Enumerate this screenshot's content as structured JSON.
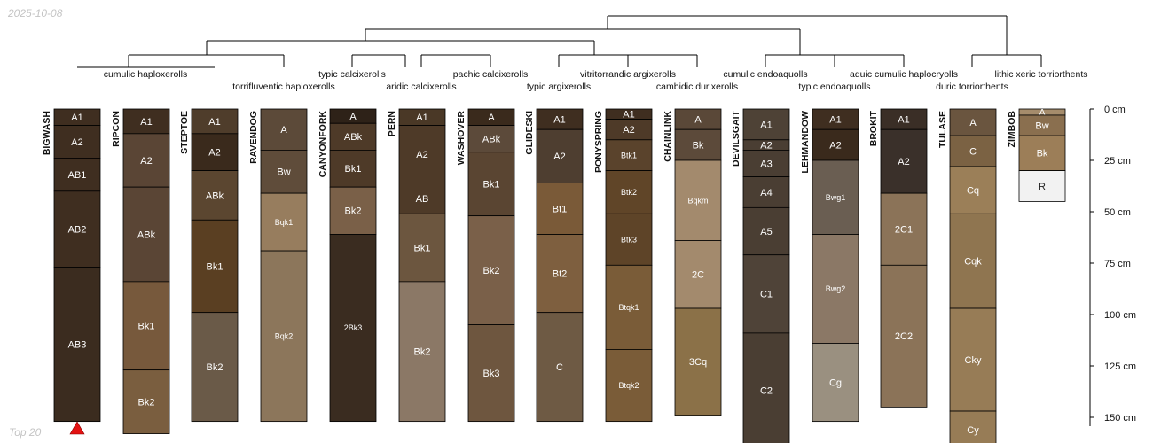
{
  "header": {
    "date": "2025-10-08"
  },
  "footer": {
    "note": "Top 20"
  },
  "depth_axis": {
    "unit": "cm",
    "ticks": [
      0,
      25,
      50,
      75,
      100,
      125,
      150
    ]
  },
  "taxa": [
    "cumulic haploxerolls",
    "torrifluventic haploxerolls",
    "typic calcixerolls",
    "aridic calcixerolls",
    "pachic calcixerolls",
    "typic argixerolls",
    "vitritorrandic argixerolls",
    "cambidic durixerolls",
    "cumulic endoaquolls",
    "typic endoaquolls",
    "aquic cumulic haplocryolls",
    "duric torriorthents",
    "lithic xeric torriorthents"
  ],
  "profiles": [
    {
      "name": "BIGWASH",
      "horizons": [
        {
          "name": "A1",
          "top": 0,
          "bottom": 8,
          "color": "#3f2e20"
        },
        {
          "name": "A2",
          "top": 8,
          "bottom": 24,
          "color": "#3f2e20"
        },
        {
          "name": "AB1",
          "top": 24,
          "bottom": 40,
          "color": "#3f2e20"
        },
        {
          "name": "AB2",
          "top": 40,
          "bottom": 77,
          "color": "#3f2e20"
        },
        {
          "name": "AB3",
          "top": 77,
          "bottom": 152,
          "color": "#3b2c1f"
        }
      ]
    },
    {
      "name": "RIPCON",
      "horizons": [
        {
          "name": "A1",
          "top": 0,
          "bottom": 12,
          "color": "#3f2e20"
        },
        {
          "name": "A2",
          "top": 12,
          "bottom": 38,
          "color": "#5a4535"
        },
        {
          "name": "ABk",
          "top": 38,
          "bottom": 84,
          "color": "#5a4535"
        },
        {
          "name": "Bk1",
          "top": 84,
          "bottom": 127,
          "color": "#77593c"
        },
        {
          "name": "Bk2",
          "top": 127,
          "bottom": 158,
          "color": "#7a5e3f"
        }
      ]
    },
    {
      "name": "STEPTOE",
      "horizons": [
        {
          "name": "A1",
          "top": 0,
          "bottom": 12,
          "color": "#4f3d2b"
        },
        {
          "name": "A2",
          "top": 12,
          "bottom": 30,
          "color": "#3a2a1c"
        },
        {
          "name": "ABk",
          "top": 30,
          "bottom": 54,
          "color": "#5b4630"
        },
        {
          "name": "Bk1",
          "top": 54,
          "bottom": 99,
          "color": "#5a3f22"
        },
        {
          "name": "Bk2",
          "top": 99,
          "bottom": 152,
          "color": "#6a5a48"
        }
      ]
    },
    {
      "name": "RAVENDOG",
      "horizons": [
        {
          "name": "A",
          "top": 0,
          "bottom": 20,
          "color": "#5c4a39"
        },
        {
          "name": "Bw",
          "top": 20,
          "bottom": 41,
          "color": "#5f4c3a"
        },
        {
          "name": "Bqk1",
          "top": 41,
          "bottom": 69,
          "color": "#977d5e"
        },
        {
          "name": "Bqk2",
          "top": 69,
          "bottom": 152,
          "color": "#8c765b"
        }
      ]
    },
    {
      "name": "CANYONFORK",
      "horizons": [
        {
          "name": "A",
          "top": 0,
          "bottom": 7,
          "color": "#2e2218"
        },
        {
          "name": "ABk",
          "top": 7,
          "bottom": 20,
          "color": "#4e3a28"
        },
        {
          "name": "Bk1",
          "top": 20,
          "bottom": 38,
          "color": "#4e3a28"
        },
        {
          "name": "Bk2",
          "top": 38,
          "bottom": 61,
          "color": "#7a6048"
        },
        {
          "name": "2Bk3",
          "top": 61,
          "bottom": 152,
          "color": "#3a2c20"
        }
      ]
    },
    {
      "name": "PERN",
      "horizons": [
        {
          "name": "A1",
          "top": 0,
          "bottom": 8,
          "color": "#4a3826"
        },
        {
          "name": "A2",
          "top": 8,
          "bottom": 36,
          "color": "#4e3a28"
        },
        {
          "name": "AB",
          "top": 36,
          "bottom": 51,
          "color": "#4e3a28"
        },
        {
          "name": "Bk1",
          "top": 51,
          "bottom": 84,
          "color": "#6c563f"
        },
        {
          "name": "Bk2",
          "top": 84,
          "bottom": 152,
          "color": "#8b7866"
        }
      ]
    },
    {
      "name": "WASHOVER",
      "horizons": [
        {
          "name": "A",
          "top": 0,
          "bottom": 8,
          "color": "#3a2a1c"
        },
        {
          "name": "ABk",
          "top": 8,
          "bottom": 21,
          "color": "#5c4a3a"
        },
        {
          "name": "Bk1",
          "top": 21,
          "bottom": 52,
          "color": "#5a4532"
        },
        {
          "name": "Bk2",
          "top": 52,
          "bottom": 105,
          "color": "#7a6049"
        },
        {
          "name": "Bk3",
          "top": 105,
          "bottom": 152,
          "color": "#6e563f"
        }
      ]
    },
    {
      "name": "GLIDESKI",
      "horizons": [
        {
          "name": "A1",
          "top": 0,
          "bottom": 10,
          "color": "#3f2e20"
        },
        {
          "name": "A2",
          "top": 10,
          "bottom": 36,
          "color": "#4e3e30"
        },
        {
          "name": "Bt1",
          "top": 36,
          "bottom": 61,
          "color": "#7a5a38"
        },
        {
          "name": "Bt2",
          "top": 61,
          "bottom": 99,
          "color": "#7e5f3f"
        },
        {
          "name": "C",
          "top": 99,
          "bottom": 152,
          "color": "#6e5a44"
        }
      ]
    },
    {
      "name": "PONYSPRING",
      "horizons": [
        {
          "name": "A1",
          "top": 0,
          "bottom": 5,
          "color": "#3f2e20"
        },
        {
          "name": "A2",
          "top": 5,
          "bottom": 15,
          "color": "#4e3a28"
        },
        {
          "name": "Btk1",
          "top": 15,
          "bottom": 30,
          "color": "#5a432c"
        },
        {
          "name": "Btk2",
          "top": 30,
          "bottom": 51,
          "color": "#604528"
        },
        {
          "name": "Btk3",
          "top": 51,
          "bottom": 76,
          "color": "#5e4428"
        },
        {
          "name": "Btqk1",
          "top": 76,
          "bottom": 117,
          "color": "#7a5c38"
        },
        {
          "name": "Btqk2",
          "top": 117,
          "bottom": 152,
          "color": "#7a5c38"
        }
      ]
    },
    {
      "name": "CHAINLINK",
      "horizons": [
        {
          "name": "A",
          "top": 0,
          "bottom": 10,
          "color": "#5a4838"
        },
        {
          "name": "Bk",
          "top": 10,
          "bottom": 25,
          "color": "#5c4a3a"
        },
        {
          "name": "Bqkm",
          "top": 25,
          "bottom": 64,
          "color": "#a38a6d"
        },
        {
          "name": "2C",
          "top": 64,
          "bottom": 97,
          "color": "#a38a6d"
        },
        {
          "name": "3Cq",
          "top": 97,
          "bottom": 149,
          "color": "#8b7148"
        }
      ]
    },
    {
      "name": "DEVILSGAIT",
      "horizons": [
        {
          "name": "A1",
          "top": 0,
          "bottom": 15,
          "color": "#4e4236"
        },
        {
          "name": "A2",
          "top": 15,
          "bottom": 20,
          "color": "#4a3e33"
        },
        {
          "name": "A3",
          "top": 20,
          "bottom": 33,
          "color": "#4a3e33"
        },
        {
          "name": "A4",
          "top": 33,
          "bottom": 48,
          "color": "#4a3e33"
        },
        {
          "name": "A5",
          "top": 48,
          "bottom": 71,
          "color": "#4a3e33"
        },
        {
          "name": "C1",
          "top": 71,
          "bottom": 109,
          "color": "#4f4338"
        },
        {
          "name": "C2",
          "top": 109,
          "bottom": 165,
          "color": "#4a3e33"
        }
      ]
    },
    {
      "name": "LEHMANDOW",
      "horizons": [
        {
          "name": "A1",
          "top": 0,
          "bottom": 10,
          "color": "#3f2e20"
        },
        {
          "name": "A2",
          "top": 10,
          "bottom": 25,
          "color": "#3a2a1c"
        },
        {
          "name": "Bwg1",
          "top": 25,
          "bottom": 61,
          "color": "#6a5e52"
        },
        {
          "name": "Bwg2",
          "top": 61,
          "bottom": 114,
          "color": "#8b7866"
        },
        {
          "name": "Cg",
          "top": 114,
          "bottom": 152,
          "color": "#9a9080"
        }
      ]
    },
    {
      "name": "BROKIT",
      "horizons": [
        {
          "name": "A1",
          "top": 0,
          "bottom": 10,
          "color": "#3a2e26"
        },
        {
          "name": "A2",
          "top": 10,
          "bottom": 41,
          "color": "#3a302a"
        },
        {
          "name": "2C1",
          "top": 41,
          "bottom": 76,
          "color": "#8b7358"
        },
        {
          "name": "2C2",
          "top": 76,
          "bottom": 145,
          "color": "#8b7358"
        }
      ]
    },
    {
      "name": "TULASE",
      "horizons": [
        {
          "name": "A",
          "top": 0,
          "bottom": 13,
          "color": "#6a553f"
        },
        {
          "name": "C",
          "top": 13,
          "bottom": 28,
          "color": "#7b6243"
        },
        {
          "name": "Cq",
          "top": 28,
          "bottom": 51,
          "color": "#9b7f58"
        },
        {
          "name": "Cqk",
          "top": 51,
          "bottom": 97,
          "color": "#8f7550"
        },
        {
          "name": "Cky",
          "top": 97,
          "bottom": 147,
          "color": "#977c56"
        },
        {
          "name": "Cy",
          "top": 147,
          "bottom": 165,
          "color": "#977c56"
        }
      ]
    },
    {
      "name": "ZIMBOB",
      "horizons": [
        {
          "name": "A",
          "top": 0,
          "bottom": 3,
          "color": "#a58c6c"
        },
        {
          "name": "Bw",
          "top": 3,
          "bottom": 13,
          "color": "#8a6f4f"
        },
        {
          "name": "Bk",
          "top": 13,
          "bottom": 30,
          "color": "#9c7e58"
        },
        {
          "name": "R",
          "top": 30,
          "bottom": 45,
          "color": "#f2f2f2"
        }
      ]
    }
  ]
}
